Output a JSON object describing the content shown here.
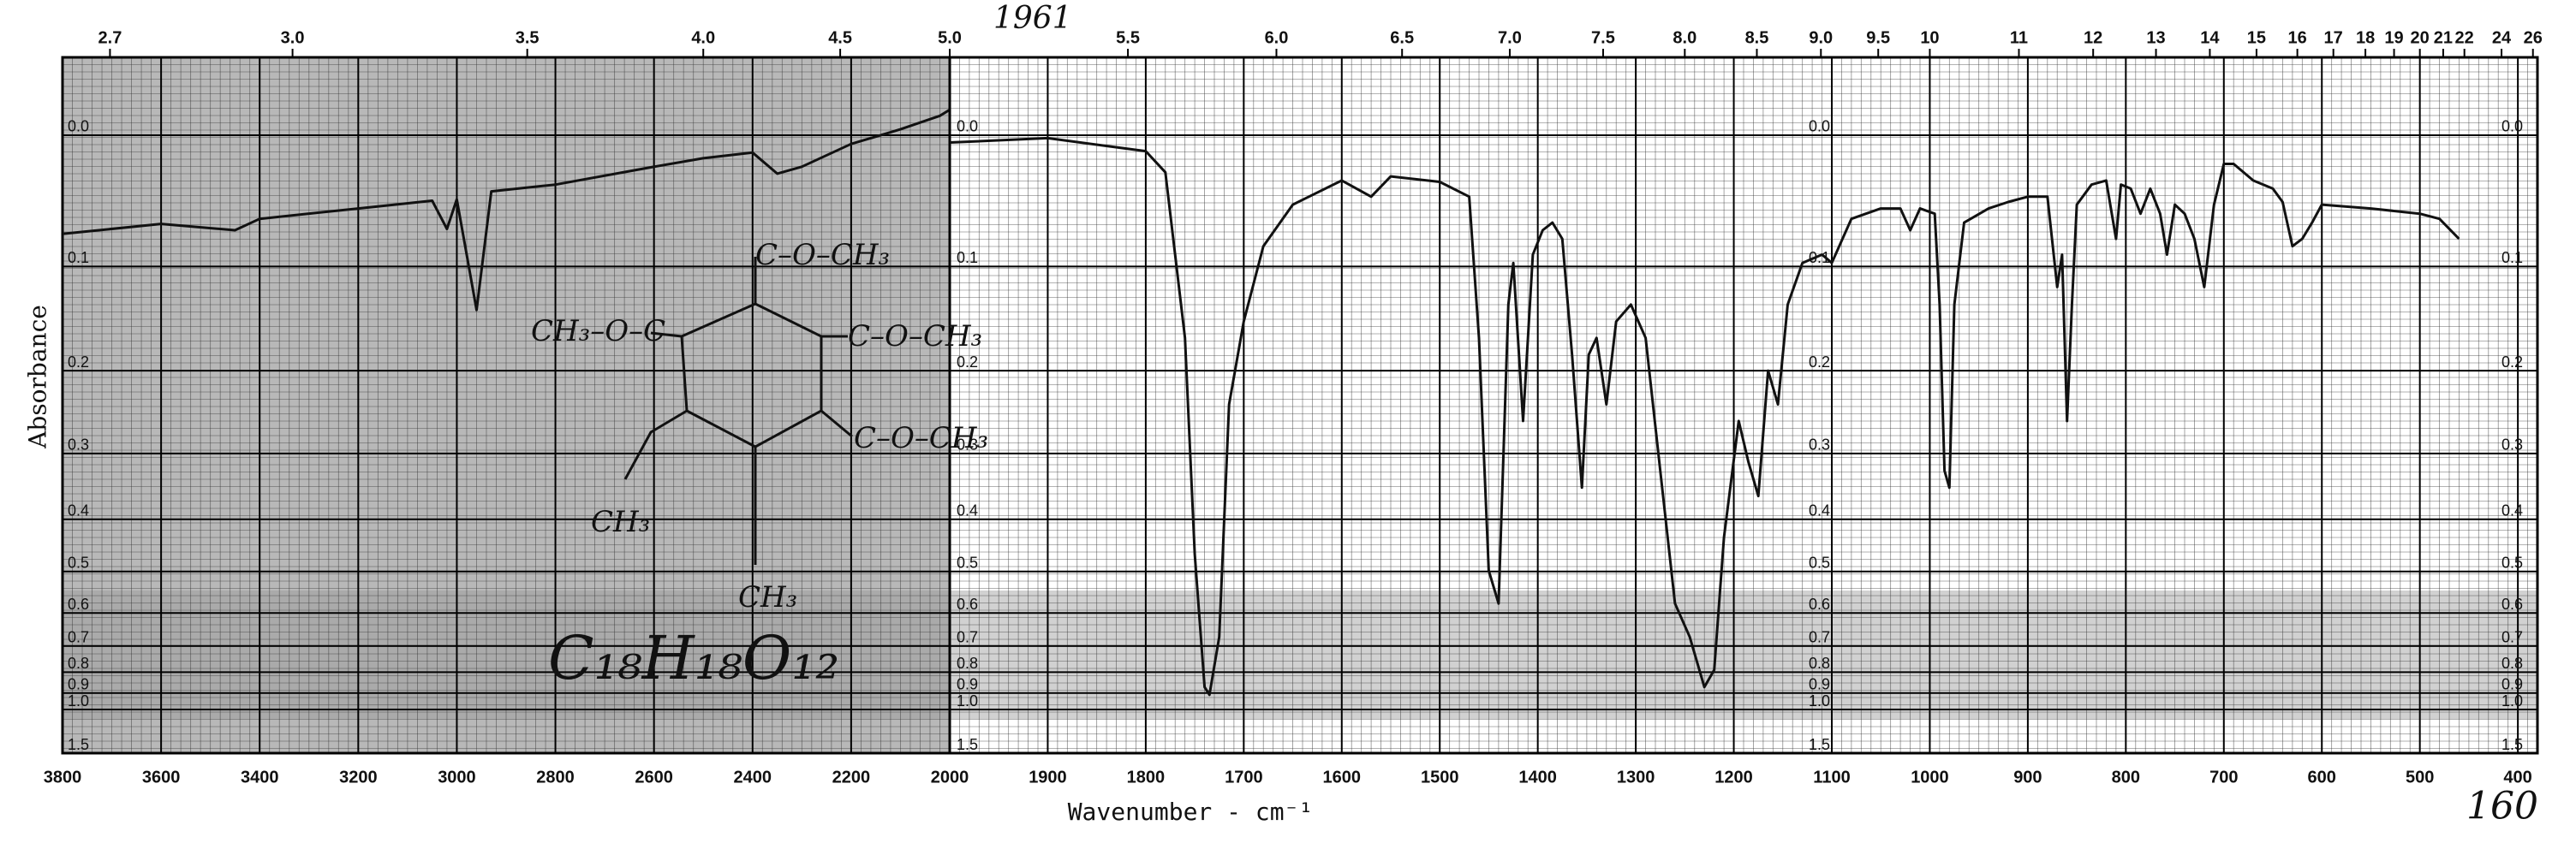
{
  "chart_data": [
    {
      "type": "line",
      "ylabel": "Absorbance",
      "xlim": [
        3800,
        2000
      ],
      "ylim": [
        -0.05,
        1.5
      ],
      "yscale": "transmittance",
      "grid": true,
      "color": "#111111",
      "xticks": [
        3800,
        3600,
        3400,
        3200,
        3000,
        2800,
        2600,
        2400,
        2200,
        2000
      ],
      "x2ticks": [
        2.7,
        {
          "value": 3,
          "label": "3.0"
        },
        3.5,
        {
          "value": 4,
          "label": "4.0"
        },
        4.5,
        {
          "value": 5,
          "label": "5.0"
        }
      ],
      "yticks": [
        {
          "value": 0,
          "label": "0.0"
        },
        0.1,
        0.2,
        0.3,
        0.4,
        0.5,
        0.6,
        0.7,
        0.8,
        0.9,
        {
          "value": 1,
          "label": "1.0"
        },
        1.5
      ],
      "x": [
        3800,
        3600,
        3450,
        3400,
        3200,
        3050,
        3020,
        3000,
        2960,
        2930,
        2800,
        2600,
        2500,
        2400,
        2350,
        2300,
        2200,
        2100,
        2020,
        2000
      ],
      "values": [
        0.073,
        0.065,
        0.07,
        0.061,
        0.053,
        0.047,
        0.069,
        0.046,
        0.139,
        0.04,
        0.035,
        0.022,
        0.016,
        0.012,
        0.027,
        0.022,
        0.006,
        -0.004,
        -0.013,
        -0.017
      ],
      "annotations": [
        "C–O–CH₃",
        "CH₃–O–C",
        "C–O–CH₃",
        "C–O–CH₃",
        "CH₃",
        "CH₃",
        "C₁₈H₁₈O₁₂",
        "1961"
      ]
    },
    {
      "type": "line",
      "xlabel": "Wavenumber - cm⁻¹",
      "xlim": [
        2000,
        380
      ],
      "ylim": [
        -0.05,
        1.5
      ],
      "yscale": "transmittance",
      "grid": true,
      "color": "#111111",
      "xticks": [
        1900,
        1800,
        1700,
        1600,
        1500,
        1400,
        1300,
        1200,
        1100,
        1000,
        900,
        800,
        700,
        600,
        500,
        400
      ],
      "x2ticks": [
        5.5,
        {
          "value": 6,
          "label": "6.0"
        },
        6.5,
        {
          "value": 7,
          "label": "7.0"
        },
        7.5,
        {
          "value": 8,
          "label": "8.0"
        },
        8.5,
        {
          "value": 9,
          "label": "9.0"
        },
        9.5,
        10,
        11,
        12,
        13,
        14,
        15,
        16,
        17,
        18,
        19,
        20,
        21,
        22,
        24,
        26
      ],
      "yticks": [
        {
          "value": 0,
          "label": "0.0"
        },
        0.1,
        0.2,
        0.3,
        0.4,
        0.5,
        0.6,
        0.7,
        0.8,
        0.9,
        {
          "value": 1,
          "label": "1.0"
        },
        1.5
      ],
      "x": [
        2000,
        1900,
        1800,
        1780,
        1760,
        1750,
        1740,
        1735,
        1725,
        1715,
        1700,
        1680,
        1650,
        1600,
        1570,
        1550,
        1500,
        1470,
        1460,
        1450,
        1440,
        1430,
        1425,
        1415,
        1405,
        1395,
        1385,
        1375,
        1365,
        1355,
        1348,
        1340,
        1330,
        1320,
        1305,
        1290,
        1275,
        1260,
        1245,
        1230,
        1220,
        1210,
        1195,
        1185,
        1175,
        1165,
        1155,
        1145,
        1130,
        1110,
        1100,
        1080,
        1050,
        1030,
        1020,
        1010,
        995,
        990,
        985,
        980,
        975,
        965,
        940,
        920,
        900,
        880,
        870,
        865,
        860,
        855,
        850,
        835,
        820,
        810,
        805,
        795,
        785,
        775,
        765,
        758,
        750,
        740,
        730,
        720,
        710,
        700,
        690,
        670,
        650,
        640,
        630,
        620,
        610,
        600,
        550,
        500,
        480,
        460
      ],
      "values": [
        0.005,
        0.002,
        0.011,
        0.026,
        0.166,
        0.464,
        0.869,
        0.91,
        0.67,
        0.238,
        0.15,
        0.083,
        0.05,
        0.032,
        0.044,
        0.029,
        0.033,
        0.044,
        0.166,
        0.498,
        0.575,
        0.134,
        0.097,
        0.258,
        0.09,
        0.07,
        0.064,
        0.077,
        0.183,
        0.349,
        0.183,
        0.166,
        0.238,
        0.15,
        0.134,
        0.166,
        0.324,
        0.575,
        0.67,
        0.869,
        0.79,
        0.432,
        0.258,
        0.312,
        0.362,
        0.2,
        0.238,
        0.134,
        0.097,
        0.09,
        0.097,
        0.061,
        0.053,
        0.053,
        0.07,
        0.053,
        0.057,
        0.134,
        0.324,
        0.349,
        0.134,
        0.064,
        0.053,
        0.048,
        0.044,
        0.044,
        0.118,
        0.09,
        0.258,
        0.134,
        0.05,
        0.035,
        0.032,
        0.077,
        0.035,
        0.038,
        0.057,
        0.038,
        0.057,
        0.09,
        0.05,
        0.057,
        0.077,
        0.118,
        0.05,
        0.02,
        0.02,
        0.032,
        0.038,
        0.048,
        0.083,
        0.077,
        0.064,
        0.05,
        0.053,
        0.057,
        0.061,
        0.077
      ],
      "annotations": [
        "160"
      ]
    }
  ]
}
